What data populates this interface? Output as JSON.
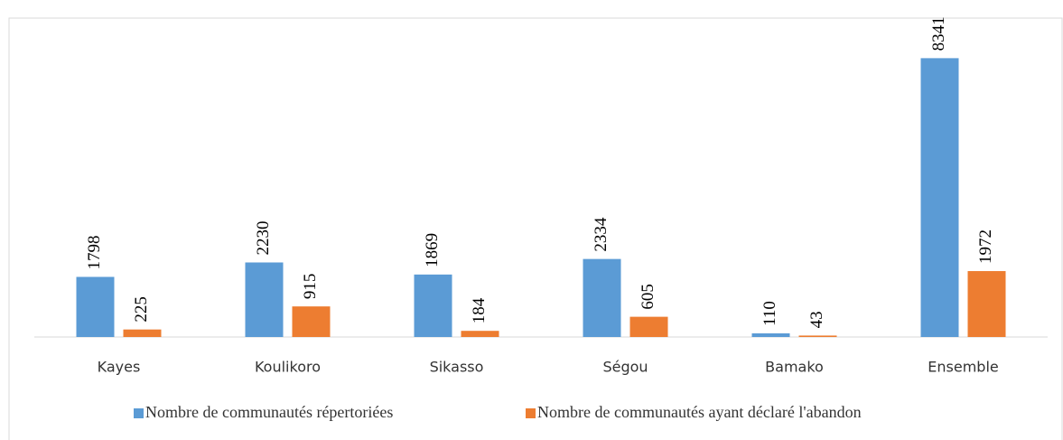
{
  "chart_data": {
    "type": "bar",
    "categories": [
      "Kayes",
      "Koulikoro",
      "Sikasso",
      "Ségou",
      "Bamako",
      "Ensemble"
    ],
    "series": [
      {
        "name": "Nombre de communautés répertoriées",
        "color": "#5b9bd5",
        "values": [
          1798,
          2230,
          1869,
          2334,
          110,
          8341
        ]
      },
      {
        "name": "Nombre de communautés ayant déclaré l'abandon",
        "color": "#ed7d31",
        "values": [
          225,
          915,
          184,
          605,
          43,
          1972
        ]
      }
    ],
    "ylim": [
      0,
      9000
    ],
    "legend": "bottom"
  }
}
